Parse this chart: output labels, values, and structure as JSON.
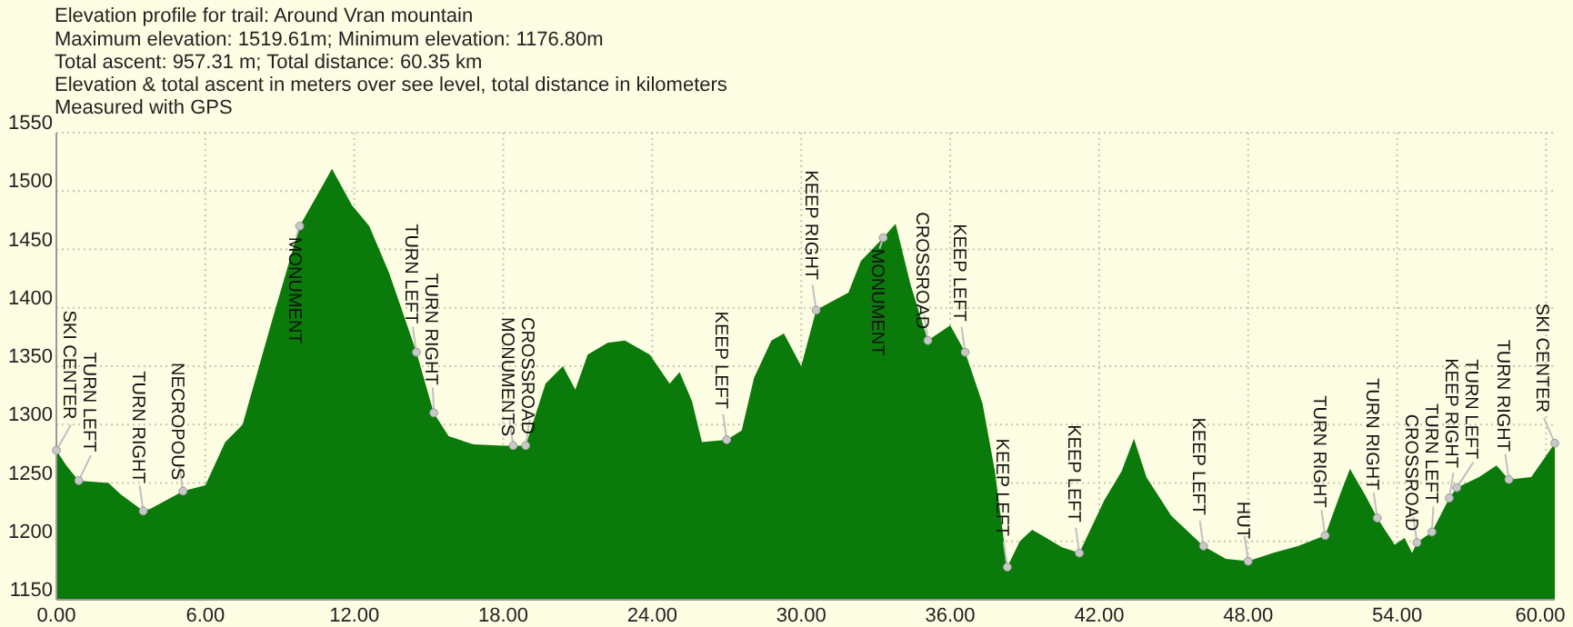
{
  "chart_data": {
    "type": "area",
    "title": "Elevation profile for trail: Around Vran mountain",
    "annotations": [
      "Maximum elevation: 1519.61m; Minimum elevation: 1176.80m",
      "Total ascent: 957.31 m; Total distance: 60.35 km",
      "Elevation & total ascent in meters over see level, total distance in kilometers",
      "Measured with GPS",
      {
        "text": "SKI CENTER",
        "x": 0,
        "y": 1278
      },
      {
        "text": "TURN LEFT",
        "x": 0.9,
        "y": 1252
      },
      {
        "text": "TURN RIGHT",
        "x": 3.5,
        "y": 1226
      },
      {
        "text": "NECROPOUS",
        "x": 5.1,
        "y": 1243
      },
      {
        "text": "MONUMENT",
        "x": 9.8,
        "y": 1470
      },
      {
        "text": "TURN LEFT",
        "x": 14.5,
        "y": 1362
      },
      {
        "text": "TURN RIGHT",
        "x": 15.2,
        "y": 1310
      },
      {
        "text": "MONUMENTS",
        "x": 18.4,
        "y": 1282
      },
      {
        "text": "CROSSROAD",
        "x": 18.9,
        "y": 1282
      },
      {
        "text": "KEEP LEFT",
        "x": 27.0,
        "y": 1287
      },
      {
        "text": "KEEP RIGHT",
        "x": 30.6,
        "y": 1398
      },
      {
        "text": "MONUMENT",
        "x": 33.3,
        "y": 1460
      },
      {
        "text": "CROSSROAD",
        "x": 35.1,
        "y": 1372
      },
      {
        "text": "KEEP LEFT",
        "x": 36.6,
        "y": 1362
      },
      {
        "text": "KEEP LEFT",
        "x": 38.3,
        "y": 1178
      },
      {
        "text": "KEEP LEFT",
        "x": 41.2,
        "y": 1190
      },
      {
        "text": "KEEP LEFT",
        "x": 46.2,
        "y": 1196
      },
      {
        "text": "HUT",
        "x": 48.0,
        "y": 1183
      },
      {
        "text": "TURN RIGHT",
        "x": 51.1,
        "y": 1205
      },
      {
        "text": "TURN RIGHT",
        "x": 53.2,
        "y": 1220
      },
      {
        "text": "CROSSROAD",
        "x": 54.8,
        "y": 1199
      },
      {
        "text": "TURN LEFT",
        "x": 55.4,
        "y": 1208
      },
      {
        "text": "KEEP RIGHT",
        "x": 56.1,
        "y": 1237
      },
      {
        "text": "TURN LEFT",
        "x": 56.4,
        "y": 1246
      },
      {
        "text": "TURN RIGHT",
        "x": 58.5,
        "y": 1253
      },
      {
        "text": "SKI CENTER",
        "x": 60.35,
        "y": 1284
      }
    ],
    "x": [
      0,
      0.4,
      0.9,
      2.1,
      2.6,
      3.5,
      3.8,
      5.1,
      6.0,
      6.8,
      7.5,
      8.7,
      9.8,
      10.6,
      11.1,
      11.9,
      12.6,
      13.4,
      14.5,
      15.2,
      15.8,
      16.8,
      18.0,
      18.9,
      19.7,
      20.4,
      20.9,
      21.4,
      22.2,
      22.9,
      23.9,
      24.7,
      25.1,
      25.6,
      26.0,
      27.0,
      27.6,
      28.1,
      28.8,
      29.3,
      30.0,
      30.6,
      31.2,
      31.9,
      32.4,
      33.3,
      33.8,
      34.4,
      35.1,
      36.0,
      36.6,
      37.3,
      37.8,
      38.3,
      38.8,
      39.3,
      39.7,
      40.5,
      41.2,
      42.2,
      42.9,
      43.4,
      43.9,
      44.9,
      46.2,
      47.1,
      48.0,
      49.0,
      50.0,
      51.1,
      51.7,
      52.1,
      52.7,
      53.2,
      53.9,
      54.3,
      54.6,
      54.8,
      55.4,
      56.1,
      56.4,
      57.3,
      58.0,
      58.5,
      59.4,
      60.35
    ],
    "series": [
      {
        "color": "#0a7a0a",
        "values": [
          1278,
          1265,
          1252,
          1250,
          1240,
          1226,
          1228,
          1243,
          1248,
          1285,
          1300,
          1390,
          1470,
          1500,
          1519,
          1488,
          1470,
          1430,
          1362,
          1310,
          1290,
          1283,
          1282,
          1282,
          1335,
          1350,
          1330,
          1360,
          1370,
          1372,
          1360,
          1335,
          1345,
          1320,
          1285,
          1287,
          1295,
          1340,
          1372,
          1378,
          1350,
          1398,
          1405,
          1413,
          1440,
          1460,
          1472,
          1420,
          1372,
          1385,
          1362,
          1318,
          1260,
          1178,
          1200,
          1210,
          1205,
          1195,
          1190,
          1235,
          1260,
          1288,
          1255,
          1222,
          1196,
          1185,
          1183,
          1190,
          1196,
          1205,
          1240,
          1262,
          1240,
          1220,
          1197,
          1203,
          1190,
          1199,
          1208,
          1237,
          1246,
          1255,
          1265,
          1253,
          1255,
          1284
        ]
      }
    ],
    "xlim": [
      0,
      60.35
    ],
    "xticks": [
      {
        "value": 0,
        "label": "0.00"
      },
      {
        "value": 6,
        "label": "6.00"
      },
      {
        "value": 12,
        "label": "12.00"
      },
      {
        "value": 18,
        "label": "18.00"
      },
      {
        "value": 24,
        "label": "24.00"
      },
      {
        "value": 30,
        "label": "30.00"
      },
      {
        "value": 36,
        "label": "36.00"
      },
      {
        "value": 42,
        "label": "42.00"
      },
      {
        "value": 48,
        "label": "48.00"
      },
      {
        "value": 54,
        "label": "54.00"
      },
      {
        "value": 60,
        "label": "60.00"
      }
    ],
    "ylim": [
      1150,
      1550
    ],
    "yticks": [
      1150,
      1200,
      1250,
      1300,
      1350,
      1400,
      1450,
      1500,
      1550
    ],
    "grid": true,
    "line_style": "dotted"
  }
}
